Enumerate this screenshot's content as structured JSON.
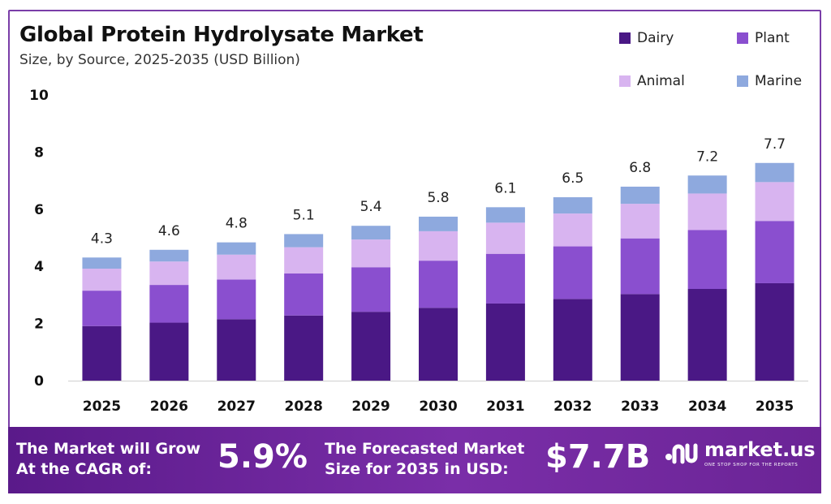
{
  "header": {
    "title": "Global Protein Hydrolysate Market",
    "subtitle": "Size, by Source, 2025-2035 (USD Billion)"
  },
  "legend": [
    {
      "label": "Dairy",
      "color": "#4a1885"
    },
    {
      "label": "Plant",
      "color": "#8a4fcf"
    },
    {
      "label": "Animal",
      "color": "#d8b4f0"
    },
    {
      "label": "Marine",
      "color": "#8ea9de"
    }
  ],
  "chart_data": {
    "type": "bar",
    "stacked": true,
    "title": "Global Protein Hydrolysate Market",
    "subtitle": "Size, by Source, 2025-2035 (USD Billion)",
    "xlabel": "",
    "ylabel": "",
    "ylim": [
      0,
      10
    ],
    "yticks": [
      0,
      2,
      4,
      6,
      8,
      10
    ],
    "categories": [
      "2025",
      "2026",
      "2027",
      "2028",
      "2029",
      "2030",
      "2031",
      "2032",
      "2033",
      "2034",
      "2035"
    ],
    "series": [
      {
        "name": "Dairy",
        "color": "#4a1885",
        "values": [
          1.91,
          2.03,
          2.15,
          2.28,
          2.41,
          2.55,
          2.7,
          2.86,
          3.03,
          3.21,
          3.41
        ]
      },
      {
        "name": "Plant",
        "color": "#8a4fcf",
        "values": [
          1.24,
          1.32,
          1.39,
          1.47,
          1.56,
          1.65,
          1.74,
          1.84,
          1.95,
          2.06,
          2.18
        ]
      },
      {
        "name": "Animal",
        "color": "#d8b4f0",
        "values": [
          0.77,
          0.82,
          0.87,
          0.92,
          0.97,
          1.03,
          1.09,
          1.15,
          1.21,
          1.28,
          1.36
        ]
      },
      {
        "name": "Marine",
        "color": "#8ea9de",
        "values": [
          0.39,
          0.41,
          0.43,
          0.46,
          0.48,
          0.51,
          0.54,
          0.57,
          0.6,
          0.63,
          0.67
        ]
      }
    ],
    "totals": [
      "4.3",
      "4.6",
      "4.8",
      "5.1",
      "5.4",
      "5.8",
      "6.1",
      "6.5",
      "6.8",
      "7.2",
      "7.7"
    ]
  },
  "footer": {
    "cagr_label": [
      "The Market will Grow",
      "At the CAGR of:"
    ],
    "cagr_value": "5.9%",
    "forecast_label": [
      "The Forecasted Market",
      "Size for 2035 in USD:"
    ],
    "forecast_value": "$7.7B",
    "brand": "market.us",
    "tagline": "ONE STOP SHOP FOR THE REPORTS"
  }
}
